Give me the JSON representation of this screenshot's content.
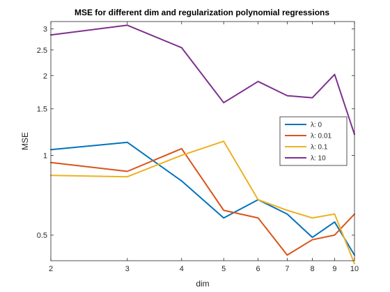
{
  "chart_data": {
    "type": "line",
    "title": "MSE for different dim and regularization polynomial regressions",
    "xlabel": "dim",
    "ylabel": "MSE",
    "xscale": "log",
    "yscale": "log",
    "xlim": [
      2,
      10
    ],
    "ylim": [
      0.4,
      3.2
    ],
    "xticks": [
      2,
      3,
      4,
      5,
      6,
      7,
      8,
      9,
      10
    ],
    "xtick_labels": [
      "2",
      "3",
      "4",
      "5",
      "6",
      "7",
      "8",
      "9",
      "10"
    ],
    "yticks": [
      0.5,
      1,
      1.5,
      2,
      2.5,
      3
    ],
    "ytick_labels": [
      "0.5",
      "1",
      "1.5",
      "2",
      "2.5",
      "3"
    ],
    "grid": false,
    "legend_position": "right",
    "x": [
      2,
      3,
      4,
      5,
      6,
      7,
      8,
      9,
      10
    ],
    "series": [
      {
        "name": "λ: 0",
        "color": "#0072BD",
        "values": [
          1.05,
          1.12,
          0.8,
          0.58,
          0.68,
          0.6,
          0.49,
          0.56,
          0.42
        ]
      },
      {
        "name": "λ: 0.01",
        "color": "#D95319",
        "values": [
          0.94,
          0.87,
          1.06,
          0.62,
          0.58,
          0.42,
          0.48,
          0.5,
          0.6
        ]
      },
      {
        "name": "λ: 0.1",
        "color": "#EDB120",
        "values": [
          0.84,
          0.83,
          1.0,
          1.13,
          0.68,
          0.62,
          0.58,
          0.6,
          0.39
        ]
      },
      {
        "name": "λ: 10",
        "color": "#7E2F8E",
        "values": [
          2.85,
          3.1,
          2.55,
          1.58,
          1.9,
          1.68,
          1.65,
          2.02,
          1.2
        ]
      }
    ]
  }
}
